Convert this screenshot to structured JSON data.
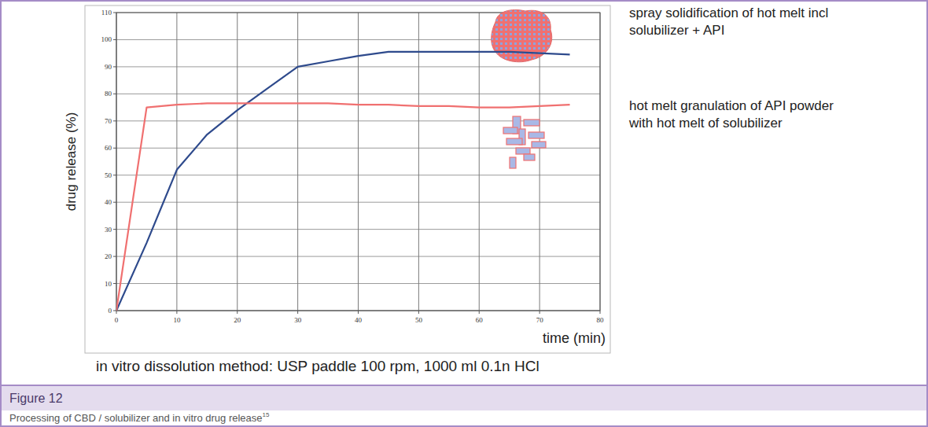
{
  "chart_data": {
    "type": "line",
    "title": "Figure 12",
    "caption": "Processing of CBD / solubilizer and in vitro drug release",
    "caption_ref": "15",
    "annotations": [
      "in vitro dissolution method: USP paddle 100 rpm, 1000 ml 0.1n HCl"
    ],
    "x_label": "time (min)",
    "y_label": "drug release (%)",
    "x": [
      0,
      5,
      10,
      15,
      20,
      25,
      30,
      35,
      40,
      45,
      50,
      55,
      60,
      65,
      70,
      75
    ],
    "series": [
      {
        "name": "spray solidification of hot melt incl solubilizer + API",
        "color": "#2e4a8c",
        "line_style": "solid",
        "values": [
          0,
          25,
          52,
          65,
          74,
          82,
          90,
          92,
          94,
          95.5,
          95.5,
          95.5,
          95.5,
          95.5,
          95,
          94.5
        ]
      },
      {
        "name": "hot melt granulation of API powder with hot melt of solubilizer",
        "color": "#f07070",
        "line_style": "solid",
        "values": [
          0,
          75,
          76,
          76.5,
          76.5,
          76.5,
          76.5,
          76.5,
          76,
          76,
          75.5,
          75.5,
          75,
          75,
          75.5,
          76
        ]
      }
    ],
    "xlim": [
      0,
      80
    ],
    "ylim": [
      0,
      110
    ],
    "xticks": [
      0,
      10,
      20,
      30,
      40,
      50,
      60,
      70,
      80
    ],
    "yticks": [
      0,
      10,
      20,
      30,
      40,
      50,
      60,
      70,
      80,
      90,
      100,
      110
    ],
    "grid": true,
    "legend": "right"
  }
}
